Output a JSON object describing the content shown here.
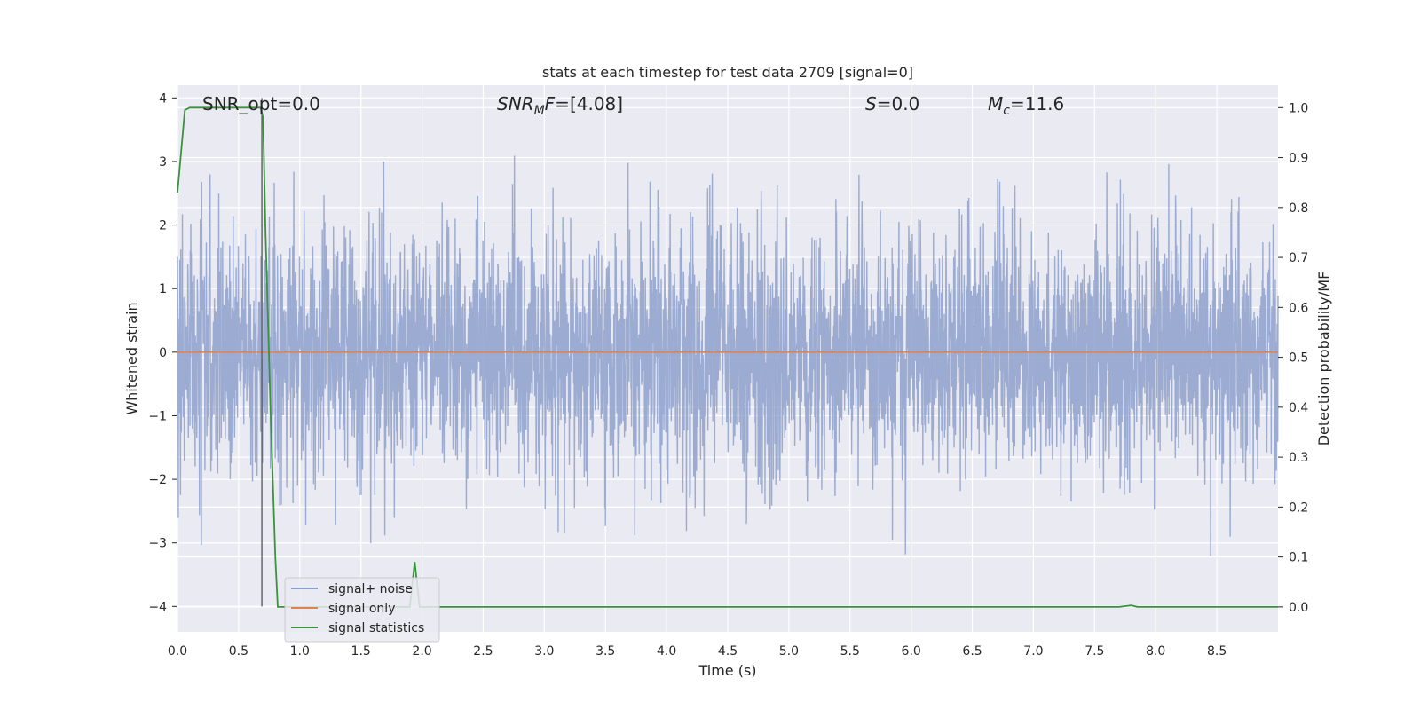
{
  "chart_data": {
    "type": "line",
    "title": "stats at each timestep for test data 2709 [signal=0]",
    "xlabel": "Time (s)",
    "ylabel": "Whitened strain",
    "y2label": "Detection probability/MF",
    "xlim": [
      0,
      9.0
    ],
    "ylim": [
      -4.4,
      4.2
    ],
    "y2lim": [
      -0.05,
      1.045
    ],
    "xticks": [
      0.0,
      0.5,
      1.0,
      1.5,
      2.0,
      2.5,
      3.0,
      3.5,
      4.0,
      4.5,
      5.0,
      5.5,
      6.0,
      6.5,
      7.0,
      7.5,
      8.0,
      8.5
    ],
    "yticks": [
      -4,
      -3,
      -2,
      -1,
      0,
      1,
      2,
      3,
      4
    ],
    "y2ticks": [
      0.0,
      0.1,
      0.2,
      0.3,
      0.4,
      0.5,
      0.6,
      0.7,
      0.8,
      0.9,
      1.0
    ],
    "grid": true,
    "legend_placement": "lower-left",
    "annotations": {
      "snr_opt": "SNR_opt=0.0",
      "snr_mf": "[4.08]",
      "s": "0.0",
      "mc": "11.6"
    },
    "vline_x": 0.69,
    "series": [
      {
        "name": "signal+ noise",
        "color": "#8da0cb",
        "axis": "left",
        "kind": "noise",
        "sample_rate": 450,
        "envelope": [
          -4.0,
          3.8
        ],
        "sigma": 0.95
      },
      {
        "name": "signal only",
        "color": "#dd8452",
        "axis": "left",
        "x": [
          0.0,
          9.0
        ],
        "y": [
          0.0,
          0.0
        ]
      },
      {
        "name": "signal statistics",
        "color": "#3a923a",
        "axis": "right",
        "x": [
          0.0,
          0.06,
          0.1,
          0.15,
          0.2,
          0.3,
          0.4,
          0.5,
          0.6,
          0.68,
          0.7,
          0.72,
          0.76,
          0.8,
          0.82,
          0.9,
          1.0,
          1.5,
          1.85,
          1.9,
          1.94,
          1.98,
          2.02,
          2.1,
          3.0,
          4.0,
          5.0,
          6.0,
          7.0,
          7.7,
          7.8,
          7.85,
          8.0,
          9.0
        ],
        "y": [
          0.83,
          0.995,
          1.0,
          1.0,
          1.0,
          1.0,
          1.0,
          1.0,
          1.0,
          1.0,
          0.98,
          0.75,
          0.4,
          0.1,
          0.0,
          0.0,
          0.0,
          0.0,
          0.0,
          0.0,
          0.09,
          0.0,
          0.0,
          0.0,
          0.0,
          0.0,
          0.0,
          0.0,
          0.0,
          0.0,
          0.003,
          0.0,
          0.0,
          0.0
        ]
      }
    ]
  }
}
